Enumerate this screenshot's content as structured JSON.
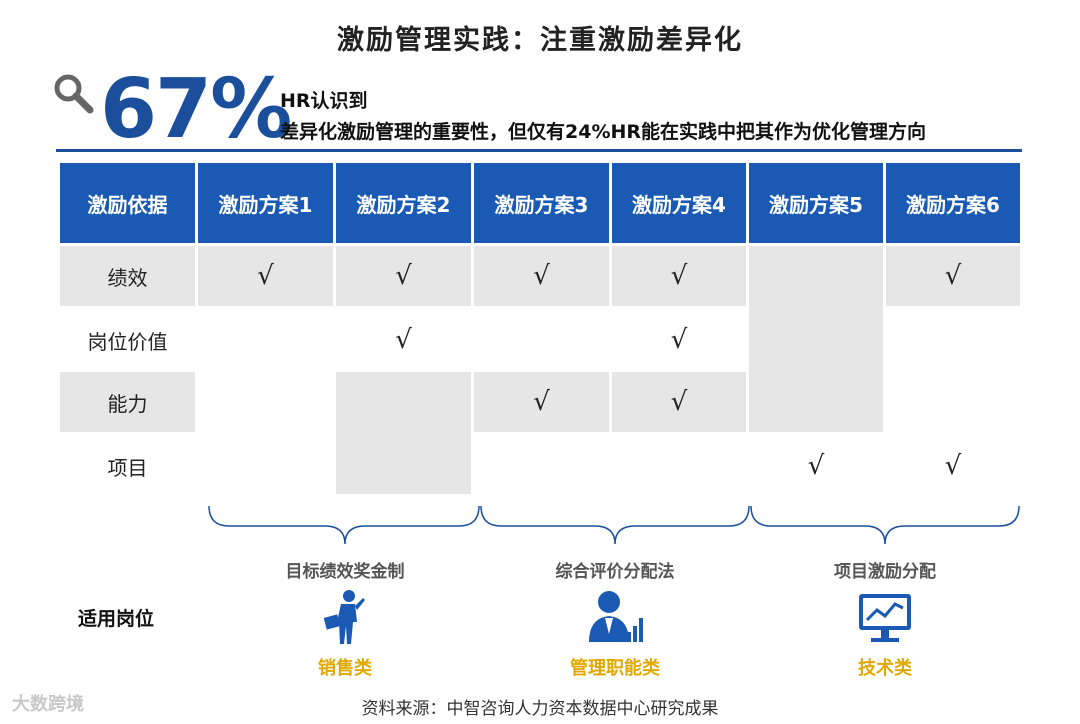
{
  "title": "激励管理实践：注重激励差异化",
  "stat": {
    "value": "67%",
    "line1": "HR认识到",
    "line2": "差异化激励管理的重要性，但仅有24%HR能在实践中把其作为优化管理方向"
  },
  "table": {
    "headers": [
      "激励依据",
      "激励方案1",
      "激励方案2",
      "激励方案3",
      "激励方案4",
      "激励方案5",
      "激励方案6"
    ],
    "rows": [
      {
        "label": "绩效",
        "checks": [
          true,
          true,
          true,
          true,
          false,
          true
        ]
      },
      {
        "label": "岗位价值",
        "checks": [
          false,
          true,
          false,
          true,
          false,
          false
        ]
      },
      {
        "label": "能力",
        "checks": [
          false,
          false,
          true,
          true,
          false,
          false
        ]
      },
      {
        "label": "项目",
        "checks": [
          false,
          false,
          false,
          false,
          true,
          true
        ]
      }
    ],
    "check_symbol": "√"
  },
  "groups": [
    {
      "label": "目标绩效奖金制",
      "role": "销售类",
      "icon": "salesperson-icon"
    },
    {
      "label": "综合评价分配法",
      "role": "管理职能类",
      "icon": "manager-chart-icon"
    },
    {
      "label": "项目激励分配",
      "role": "技术类",
      "icon": "monitor-chart-icon"
    }
  ],
  "applicable_label": "适用岗位",
  "source": "资料来源：中智咨询人力资本数据中心研究成果",
  "watermark": "大数跨境",
  "colors": {
    "header_blue": "#1a5ab4",
    "stat_blue": "#1b4f9c",
    "role_yellow": "#e0a800",
    "grey": "#e6e6e6"
  }
}
